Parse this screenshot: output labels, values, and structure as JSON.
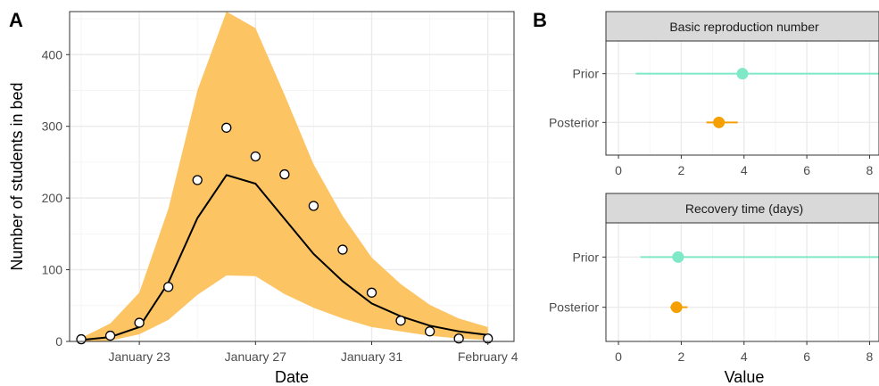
{
  "panels": {
    "a_label": "A",
    "b_label": "B"
  },
  "colors": {
    "band": "#fcc463",
    "line": "#000000",
    "prior": "#7fe8c7",
    "posterior": "#f5a000",
    "strip": "#d9d9d9",
    "grid_major": "#ebebeb",
    "grid_minor": "#f5f5f5",
    "axis_text": "#4d4d4d"
  },
  "chart_data": [
    {
      "type": "line",
      "xlabel": "Date",
      "ylabel": "Number of students in bed",
      "x_ticks": [
        {
          "day": 2,
          "label": "January 23"
        },
        {
          "day": 6,
          "label": "January 27"
        },
        {
          "day": 10,
          "label": "January 31"
        },
        {
          "day": 14,
          "label": "February  4"
        }
      ],
      "y_ticks": [
        0,
        100,
        200,
        300,
        400
      ],
      "xlim": [
        -0.4,
        14.9
      ],
      "ylim": [
        0,
        460
      ],
      "grid": true,
      "series": [
        {
          "kind": "band",
          "x": [
            0,
            1,
            2,
            3,
            4,
            5,
            6,
            7,
            8,
            9,
            10,
            11,
            12,
            13,
            14
          ],
          "lower": [
            0,
            1,
            10,
            30,
            65,
            92,
            91,
            66,
            47,
            32,
            20,
            14,
            8,
            4,
            2
          ],
          "upper": [
            5,
            25,
            68,
            185,
            350,
            460,
            437,
            344,
            247,
            175,
            117,
            80,
            51,
            32,
            20
          ]
        },
        {
          "kind": "line",
          "x": [
            0,
            1,
            2,
            3,
            4,
            5,
            6,
            7,
            8,
            9,
            10,
            11,
            12,
            13,
            14
          ],
          "values": [
            2,
            6,
            20,
            82,
            172,
            232,
            220,
            171,
            122,
            84,
            53,
            35,
            22,
            14,
            9
          ]
        },
        {
          "kind": "points",
          "x": [
            0,
            1,
            2,
            3,
            4,
            5,
            6,
            7,
            8,
            9,
            10,
            11,
            12,
            13,
            14
          ],
          "values": [
            3,
            8,
            26,
            76,
            225,
            298,
            258,
            233,
            189,
            128,
            68,
            29,
            14,
            4,
            null
          ],
          "extra_point": {
            "x": 14,
            "y": 4
          }
        }
      ]
    },
    {
      "type": "scatter",
      "strip_title": "Basic reproduction number",
      "xlim": [
        -0.4,
        8.3
      ],
      "x_ticks": [
        0,
        2,
        4,
        6,
        8
      ],
      "categories": [
        "Prior",
        "Posterior"
      ],
      "series": [
        {
          "label": "Prior",
          "point": 3.95,
          "low": 0.55,
          "high": 8.3
        },
        {
          "label": "Posterior",
          "point": 3.2,
          "low": 2.8,
          "high": 3.8
        }
      ]
    },
    {
      "type": "scatter",
      "strip_title": "Recovery time (days)",
      "xlabel": "Value",
      "xlim": [
        -0.4,
        8.3
      ],
      "x_ticks": [
        0,
        2,
        4,
        6,
        8
      ],
      "categories": [
        "Prior",
        "Posterior"
      ],
      "series": [
        {
          "label": "Prior",
          "point": 1.9,
          "low": 0.7,
          "high": 8.3
        },
        {
          "label": "Posterior",
          "point": 1.85,
          "low": 1.65,
          "high": 2.2
        }
      ]
    }
  ]
}
